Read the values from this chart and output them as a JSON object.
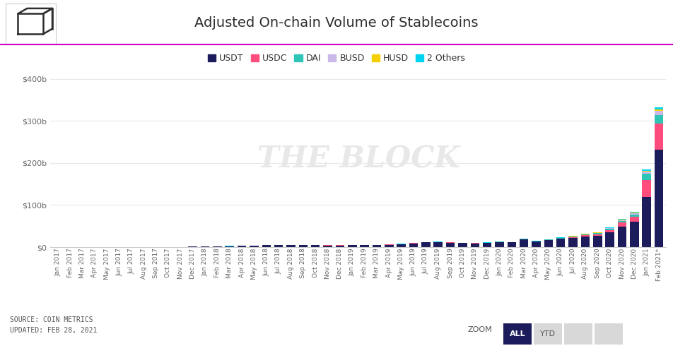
{
  "title": "Adjusted On-chain Volume of Stablecoins",
  "background_color": "#ffffff",
  "watermark": "THE BLOCK",
  "source_text": "SOURCE: COIN METRICS\nUPDATED: FEB 28, 2021",
  "legend_items": [
    "USDT",
    "USDC",
    "DAI",
    "BUSD",
    "HUSD",
    "2 Others"
  ],
  "colors": {
    "USDT": "#1c1c5c",
    "USDC": "#ff4d7d",
    "DAI": "#2ec4b6",
    "BUSD": "#c9b8e8",
    "HUSD": "#f5d000",
    "2 Others": "#00d4f0"
  },
  "months": [
    "Jan 2017",
    "Feb 2017",
    "Mar 2017",
    "Apr 2017",
    "May 2017",
    "Jun 2017",
    "Jul 2017",
    "Aug 2017",
    "Sep 2017",
    "Oct 2017",
    "Nov 2017",
    "Dec 2017",
    "Jan 2018",
    "Feb 2018",
    "Mar 2018",
    "Apr 2018",
    "May 2018",
    "Jun 2018",
    "Jul 2018",
    "Aug 2018",
    "Sep 2018",
    "Oct 2018",
    "Nov 2018",
    "Dec 2018",
    "Jan 2019",
    "Feb 2019",
    "Mar 2019",
    "Apr 2019",
    "May 2019",
    "Jun 2019",
    "Jul 2019",
    "Aug 2019",
    "Sep 2019",
    "Oct 2019",
    "Nov 2019",
    "Dec 2019",
    "Jan 2020",
    "Feb 2020",
    "Mar 2020",
    "Apr 2020",
    "May 2020",
    "Jun 2020",
    "Jul 2020",
    "Aug 2020",
    "Sep 2020",
    "Oct 2020",
    "Nov 2020",
    "Dec 2020",
    "Jan 2021",
    "Feb 2021*"
  ],
  "data": {
    "USDT": [
      0.2,
      0.2,
      0.2,
      0.2,
      0.2,
      0.3,
      0.3,
      0.4,
      0.4,
      0.5,
      0.7,
      1.0,
      1.5,
      1.8,
      2.5,
      3.0,
      4.0,
      5.0,
      5.5,
      5.0,
      4.5,
      5.0,
      4.0,
      4.0,
      4.5,
      4.5,
      5.0,
      5.5,
      7.0,
      9.0,
      11.0,
      11.5,
      10.5,
      9.5,
      9.0,
      10.0,
      12.0,
      11.0,
      18.0,
      13.0,
      16.0,
      20.0,
      22.0,
      25.0,
      27.0,
      35.0,
      48.0,
      60.0,
      120.0,
      232.0
    ],
    "USDC": [
      0.0,
      0.0,
      0.0,
      0.0,
      0.0,
      0.0,
      0.0,
      0.0,
      0.0,
      0.0,
      0.0,
      0.0,
      0.0,
      0.0,
      0.0,
      0.0,
      0.0,
      0.0,
      0.0,
      0.0,
      0.0,
      0.3,
      0.4,
      0.4,
      0.4,
      0.4,
      0.4,
      0.4,
      0.5,
      0.5,
      0.5,
      0.5,
      0.5,
      0.5,
      0.5,
      0.5,
      0.5,
      0.5,
      1.0,
      0.5,
      1.0,
      1.0,
      2.0,
      3.0,
      4.0,
      6.0,
      10.0,
      12.0,
      40.0,
      62.0
    ],
    "DAI": [
      0.0,
      0.0,
      0.0,
      0.0,
      0.0,
      0.0,
      0.0,
      0.0,
      0.0,
      0.0,
      0.0,
      0.0,
      0.0,
      0.0,
      0.0,
      0.0,
      0.0,
      0.0,
      0.0,
      0.0,
      0.0,
      0.0,
      0.0,
      0.0,
      0.0,
      0.0,
      0.0,
      0.0,
      0.0,
      0.1,
      0.1,
      0.2,
      0.2,
      0.2,
      0.2,
      0.2,
      0.3,
      0.3,
      0.5,
      0.5,
      0.8,
      1.0,
      2.0,
      2.5,
      3.0,
      3.5,
      5.0,
      6.0,
      14.0,
      20.0
    ],
    "BUSD": [
      0.0,
      0.0,
      0.0,
      0.0,
      0.0,
      0.0,
      0.0,
      0.0,
      0.0,
      0.0,
      0.0,
      0.0,
      0.0,
      0.0,
      0.0,
      0.0,
      0.0,
      0.0,
      0.0,
      0.0,
      0.0,
      0.0,
      0.0,
      0.0,
      0.0,
      0.0,
      0.0,
      0.0,
      0.0,
      0.0,
      0.0,
      0.0,
      0.0,
      0.0,
      0.0,
      0.0,
      0.0,
      0.0,
      0.0,
      0.0,
      0.0,
      0.0,
      0.0,
      0.0,
      0.3,
      0.5,
      1.0,
      2.0,
      6.0,
      10.0
    ],
    "HUSD": [
      0.0,
      0.0,
      0.0,
      0.0,
      0.0,
      0.0,
      0.0,
      0.0,
      0.0,
      0.0,
      0.0,
      0.0,
      0.0,
      0.0,
      0.0,
      0.0,
      0.0,
      0.0,
      0.0,
      0.0,
      0.0,
      0.0,
      0.0,
      0.0,
      0.0,
      0.0,
      0.0,
      0.0,
      0.0,
      0.0,
      0.3,
      0.3,
      0.0,
      0.0,
      0.0,
      0.0,
      0.0,
      0.0,
      0.0,
      0.0,
      0.5,
      0.5,
      0.5,
      0.8,
      0.8,
      1.0,
      1.0,
      1.5,
      2.0,
      3.0
    ],
    "2 Others": [
      0.05,
      0.05,
      0.05,
      0.05,
      0.05,
      0.05,
      0.05,
      0.05,
      0.05,
      0.05,
      0.05,
      0.1,
      0.1,
      0.1,
      0.1,
      0.1,
      0.1,
      0.1,
      0.1,
      0.1,
      0.1,
      0.1,
      0.1,
      0.1,
      0.1,
      0.1,
      0.1,
      0.1,
      0.1,
      0.2,
      0.2,
      0.3,
      0.3,
      0.3,
      0.3,
      0.3,
      0.3,
      0.3,
      0.5,
      0.5,
      0.5,
      0.5,
      0.8,
      1.0,
      1.0,
      1.0,
      1.5,
      2.0,
      3.0,
      5.0
    ]
  },
  "ylim": [
    0,
    420
  ],
  "yticks": [
    0,
    100,
    200,
    300,
    400
  ],
  "ytick_labels": [
    "$0",
    "$100b",
    "$200b",
    "$300b",
    "$400b"
  ],
  "accent_line_color": "#cc00cc",
  "zoom_button_color": "#1c1c5c",
  "title_fontsize": 14,
  "tick_fontsize": 6.5
}
